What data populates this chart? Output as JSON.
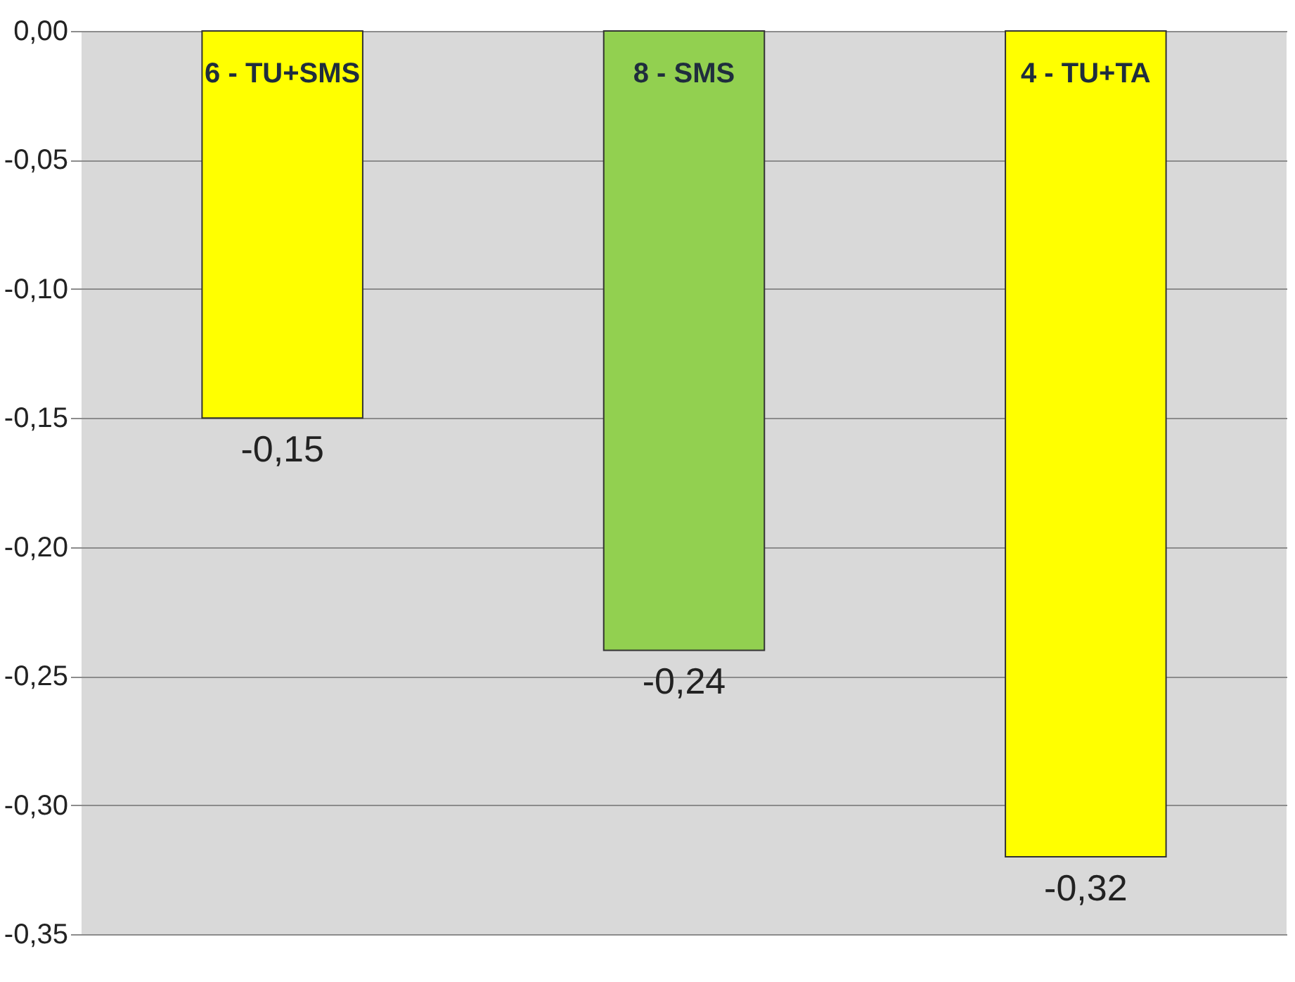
{
  "chart_data": {
    "type": "bar",
    "categories": [
      "6 - TU+SMS",
      "8 - SMS",
      "4 - TU+TA"
    ],
    "values": [
      -0.15,
      -0.24,
      -0.32
    ],
    "colors": [
      "#ffff00",
      "#92d050",
      "#ffff00"
    ],
    "ylim": [
      -0.35,
      0
    ],
    "yticks": [
      {
        "value": 0,
        "label": "0,00"
      },
      {
        "value": -0.05,
        "label": "-0,05"
      },
      {
        "value": -0.1,
        "label": "-0,10"
      },
      {
        "value": -0.15,
        "label": "-0,15"
      },
      {
        "value": -0.2,
        "label": "-0,20"
      },
      {
        "value": -0.25,
        "label": "-0,25"
      },
      {
        "value": -0.3,
        "label": "-0,30"
      },
      {
        "value": -0.35,
        "label": "-0,35"
      }
    ],
    "value_labels": [
      "-0,15",
      "-0,24",
      "-0,32"
    ],
    "grid": "y"
  }
}
